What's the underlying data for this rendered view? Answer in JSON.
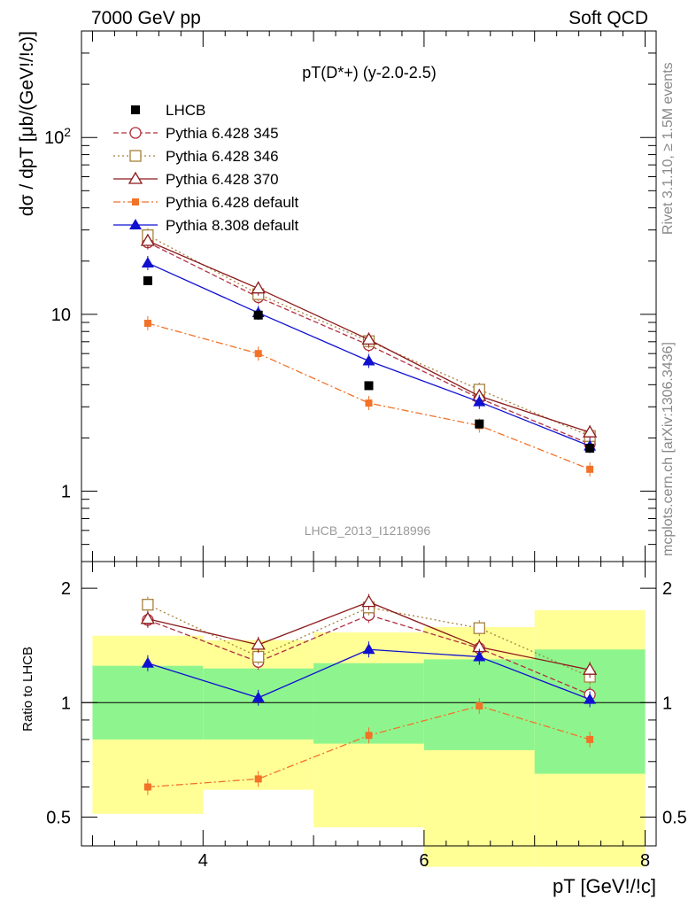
{
  "header": {
    "left": "7000 GeV pp",
    "right": "Soft QCD"
  },
  "side_labels": {
    "rivet": "Rivet 3.1.10, ≥ 1.5M events",
    "mcplots": "mcplots.cern.ch [arXiv:1306.3436]"
  },
  "chart_data": {
    "type": "line",
    "title": "pT(D*+) (y-2.0-2.5)",
    "analysis_label": "LHCB_2013_I1218996",
    "xlabel": "pT [GeV!/!c]",
    "ylabel": "dσ / dpT [μb/(GeV!/!c)]",
    "ratio_ylabel": "Ratio to LHCB",
    "xlim": [
      2.9,
      8.1
    ],
    "ylim": [
      0.4,
      400
    ],
    "yscale": "log",
    "ratio_ylim": [
      0.42,
      2.35
    ],
    "x_ticks": [
      4,
      6,
      8
    ],
    "y_ticks": [
      "1",
      "10",
      "10^2"
    ],
    "ratio_ticks": [
      "0.5",
      "1",
      "2"
    ],
    "legend_position": "top-left",
    "x": [
      3.5,
      4.5,
      5.5,
      6.5,
      7.5
    ],
    "bin_edges": [
      3,
      4,
      5,
      6,
      7,
      8
    ],
    "reference": {
      "name": "LHCB",
      "values": [
        15.5,
        9.9,
        3.95,
        2.4,
        1.75
      ]
    },
    "series": [
      {
        "name": "Pythia 6.428 345",
        "color": "#b03040",
        "dash": "6,3",
        "marker": "circle-open",
        "values": [
          25.5,
          12.5,
          6.7,
          3.35,
          1.85
        ],
        "ratio": [
          1.65,
          1.28,
          1.7,
          1.39,
          1.05
        ]
      },
      {
        "name": "Pythia 6.428 346",
        "color": "#a8803c",
        "dash": "2,3",
        "marker": "square-open",
        "values": [
          28.0,
          13.0,
          7.05,
          3.75,
          2.05
        ],
        "ratio": [
          1.81,
          1.32,
          1.78,
          1.57,
          1.17
        ]
      },
      {
        "name": "Pythia 6.428 370",
        "color": "#8b1a1a",
        "dash": "",
        "marker": "triangle-open",
        "values": [
          26.0,
          14.0,
          7.2,
          3.45,
          2.15
        ],
        "ratio": [
          1.66,
          1.42,
          1.84,
          1.4,
          1.22
        ]
      },
      {
        "name": "Pythia 6.428 default",
        "color": "#f27228",
        "dash": "8,3,2,3",
        "marker": "square-filled",
        "values": [
          8.9,
          6.0,
          3.15,
          2.35,
          1.33
        ],
        "ratio": [
          0.6,
          0.63,
          0.82,
          0.98,
          0.8
        ]
      },
      {
        "name": "Pythia 8.308 default",
        "color": "#1010d0",
        "dash": "",
        "marker": "triangle-filled",
        "values": [
          19.5,
          10.2,
          5.45,
          3.2,
          1.8
        ],
        "ratio": [
          1.27,
          1.03,
          1.38,
          1.32,
          1.02
        ]
      }
    ],
    "ratio_band_green": [
      [
        0.8,
        1.25
      ],
      [
        0.8,
        1.23
      ],
      [
        0.78,
        1.27
      ],
      [
        0.75,
        1.3
      ],
      [
        0.65,
        1.38
      ]
    ],
    "ratio_band_yellow": [
      [
        0.51,
        1.5
      ],
      [
        0.59,
        1.46
      ],
      [
        0.47,
        1.53
      ],
      [
        0.37,
        1.58
      ],
      [
        0.37,
        1.75
      ]
    ],
    "colors": {
      "green_band": "#8ef58e",
      "yellow_band": "#ffff96",
      "data": "#000000"
    }
  }
}
